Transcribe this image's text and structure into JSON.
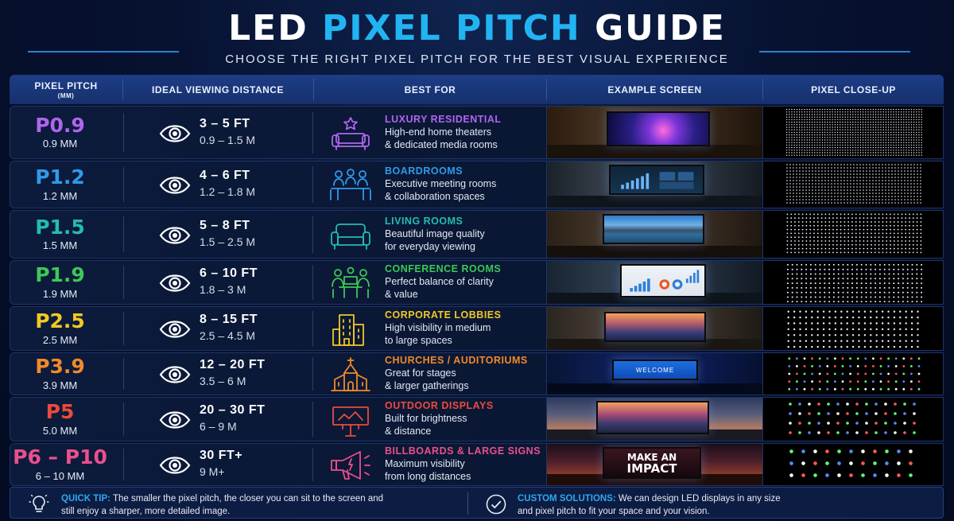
{
  "header": {
    "title_part1": "LED ",
    "title_part2": "PIXEL PITCH",
    "title_part3": " GUIDE",
    "subtitle": "CHOOSE THE RIGHT PIXEL PITCH FOR THE BEST VISUAL EXPERIENCE"
  },
  "columns": {
    "pitch": "PIXEL PITCH",
    "pitch_unit": "(MM)",
    "distance": "IDEAL VIEWING DISTANCE",
    "best_for": "BEST FOR",
    "example": "EXAMPLE SCREEN",
    "closeup": "PIXEL CLOSE-UP"
  },
  "rows": [
    {
      "pitch": "P0.9",
      "mm": "0.9 MM",
      "ft": "3 – 5 FT",
      "m": "0.9 – 1.5 M",
      "title": "LUXURY RESIDENTIAL",
      "desc1": "High-end home theaters",
      "desc2": "& dedicated media rooms",
      "color": "#b065f0",
      "icon": "sofa-star-icon"
    },
    {
      "pitch": "P1.2",
      "mm": "1.2 MM",
      "ft": "4 – 6 FT",
      "m": "1.2 – 1.8 M",
      "title": "BOARDROOMS",
      "desc1": "Executive meeting rooms",
      "desc2": "& collaboration spaces",
      "color": "#2f9be8",
      "icon": "meeting-table-icon"
    },
    {
      "pitch": "P1.5",
      "mm": "1.5 MM",
      "ft": "5 – 8 FT",
      "m": "1.5 – 2.5 M",
      "title": "LIVING ROOMS",
      "desc1": "Beautiful image quality",
      "desc2": "for everyday viewing",
      "color": "#23bcb1",
      "icon": "sofa-icon"
    },
    {
      "pitch": "P1.9",
      "mm": "1.9 MM",
      "ft": "6 – 10 FT",
      "m": "1.8 – 3 M",
      "title": "CONFERENCE ROOMS",
      "desc1": "Perfect balance of clarity",
      "desc2": "& value",
      "color": "#3cc857",
      "icon": "conference-icon"
    },
    {
      "pitch": "P2.5",
      "mm": "2.5 MM",
      "ft": "8 – 15 FT",
      "m": "2.5 – 4.5 M",
      "title": "CORPORATE LOBBIES",
      "desc1": "High visibility in medium",
      "desc2": "to large spaces",
      "color": "#f2c824",
      "icon": "building-icon"
    },
    {
      "pitch": "P3.9",
      "mm": "3.9 MM",
      "ft": "12 – 20 FT",
      "m": "3.5 – 6 M",
      "title": "CHURCHES / AUDITORIUMS",
      "desc1": "Great for stages",
      "desc2": "& larger gatherings",
      "color": "#f08a2a",
      "icon": "church-icon"
    },
    {
      "pitch": "P5",
      "mm": "5.0 MM",
      "ft": "20 – 30 FT",
      "m": "6 – 9 M",
      "title": "OUTDOOR DISPLAYS",
      "desc1": "Built for brightness",
      "desc2": "& distance",
      "color": "#ec4a3c",
      "icon": "billboard-icon"
    },
    {
      "pitch": "P6 – P10",
      "mm": "6 – 10 MM",
      "ft": "30 FT+",
      "m": "9 M+",
      "title": "BILLBOARDS & LARGE SIGNS",
      "desc1": "Maximum visibility",
      "desc2": "from long distances",
      "color": "#e9508c",
      "icon": "megaphone-icon"
    }
  ],
  "screens": {
    "welcome": "WELCOME",
    "impact1": "MAKE AN",
    "impact2": "IMPACT"
  },
  "tip": {
    "label": "QUICK TIP:",
    "line1": " The smaller the pixel pitch, the closer you can sit to the screen and",
    "line2": "still enjoy a sharper, more detailed image."
  },
  "custom": {
    "label": "CUSTOM SOLUTIONS:",
    "line1": " We can design LED displays in any size",
    "line2": "and pixel pitch to fit your space and your vision."
  }
}
